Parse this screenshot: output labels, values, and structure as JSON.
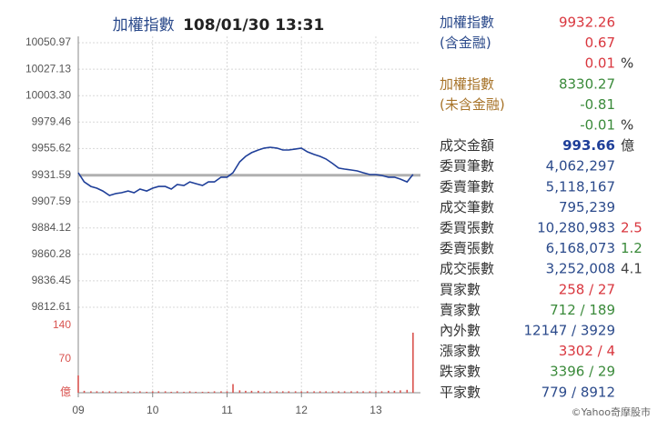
{
  "chart_data": [
    {
      "type": "line",
      "title": "加權指數",
      "subtitle": "108/01/30 13:31",
      "xlim": [
        9,
        13.6
      ],
      "xticks": [
        {
          "value": 9,
          "label": "09"
        },
        10,
        11,
        12,
        13
      ],
      "ylim": [
        9812.61,
        10050.97
      ],
      "yticks": [
        10050.97,
        10027.13,
        {
          "value": 10003.3,
          "label": "10003.30"
        },
        9979.46,
        9955.62,
        9931.59,
        9907.59,
        9884.12,
        9860.28,
        9836.45,
        9812.61
      ],
      "grid": true,
      "reference_value": 9931.59,
      "reference_color": "#b0b0b0",
      "x": [
        9,
        9.08,
        9.17,
        9.25,
        9.33,
        9.42,
        9.5,
        9.58,
        9.67,
        9.75,
        9.83,
        9.92,
        10,
        10.08,
        10.17,
        10.25,
        10.33,
        10.42,
        10.5,
        10.58,
        10.67,
        10.75,
        10.83,
        10.92,
        11,
        11.08,
        11.17,
        11.25,
        11.33,
        11.42,
        11.5,
        11.58,
        11.67,
        11.75,
        11.83,
        11.92,
        12,
        12.08,
        12.17,
        12.25,
        12.33,
        12.42,
        12.5,
        12.58,
        12.67,
        12.75,
        12.83,
        12.92,
        13,
        13.08,
        13.17,
        13.25,
        13.33,
        13.42,
        13.5
      ],
      "series": [
        {
          "color": "#1f3f99",
          "values": [
            9933.8,
            9925.6,
            9921.5,
            9919.9,
            9917.4,
            9913.4,
            9915.0,
            9915.8,
            9917.4,
            9915.8,
            9919.1,
            9917.4,
            9919.9,
            9921.5,
            9921.5,
            9919.1,
            9923.2,
            9922.4,
            9925.6,
            9924.0,
            9922.4,
            9925.6,
            9925.6,
            9929.8,
            9929.8,
            9933.8,
            9943.7,
            9948.6,
            9951.9,
            9954.3,
            9956.0,
            9956.8,
            9956.0,
            9954.3,
            9954.3,
            9955.2,
            9956.0,
            9952.7,
            9950.3,
            9948.6,
            9946.2,
            9942.1,
            9938.0,
            9937.1,
            9936.3,
            9935.5,
            9933.8,
            9932.2,
            9932.2,
            9931.4,
            9929.8,
            9929.8,
            9928.1,
            9925.6,
            9932.26
          ]
        }
      ]
    },
    {
      "type": "bar",
      "xlim": [
        9,
        13.6
      ],
      "ylim": [
        0,
        140
      ],
      "yticks": [
        {
          "value": 0,
          "label": "億"
        },
        70,
        140
      ],
      "color": "#d9534f",
      "x": [
        9,
        9.08,
        9.17,
        9.25,
        9.33,
        9.42,
        9.5,
        9.58,
        9.67,
        9.75,
        9.83,
        9.92,
        10,
        10.08,
        10.17,
        10.25,
        10.33,
        10.42,
        10.5,
        10.58,
        10.67,
        10.75,
        10.83,
        10.92,
        11,
        11.08,
        11.17,
        11.25,
        11.33,
        11.42,
        11.5,
        11.58,
        11.67,
        11.75,
        11.83,
        11.92,
        12,
        12.08,
        12.17,
        12.25,
        12.33,
        12.42,
        12.5,
        12.58,
        12.67,
        12.75,
        12.83,
        12.92,
        13,
        13.08,
        13.17,
        13.25,
        13.33,
        13.42,
        13.5
      ],
      "values": [
        36,
        4,
        3,
        3,
        3,
        3,
        3,
        2,
        3,
        2,
        3,
        2,
        3,
        3,
        3,
        2,
        3,
        2,
        3,
        2,
        2,
        2,
        3,
        3,
        3,
        18,
        5,
        4,
        4,
        4,
        3,
        3,
        3,
        3,
        3,
        3,
        3,
        3,
        3,
        3,
        3,
        3,
        3,
        3,
        3,
        3,
        3,
        3,
        3,
        3,
        4,
        4,
        5,
        6,
        125
      ]
    }
  ],
  "quote_panel": {
    "rows": [
      {
        "label": "加權指數",
        "label_color": "#2b4a8b",
        "value": "9932.26",
        "value_color": "#d9363e"
      },
      {
        "label": "(含金融)",
        "label_color": "#2b4a8b",
        "value": "0.67",
        "value_color": "#d9363e"
      },
      {
        "value": "0.01",
        "value_color": "#d9363e",
        "unit": "%"
      },
      {
        "label": "加權指數",
        "label_color": "#a8742a",
        "value": "8330.27",
        "value_color": "#3a8a3a"
      },
      {
        "label": "(未含金融)",
        "label_color": "#a8742a",
        "value": "-0.81",
        "value_color": "#3a8a3a"
      },
      {
        "value": "-0.01",
        "value_color": "#3a8a3a",
        "unit": "%"
      },
      {
        "label": "成交金額",
        "value": "993.66",
        "value_color": "#1f3f99",
        "unit": "億",
        "bold": true
      },
      {
        "label": "委買筆數",
        "value": "4,062,297",
        "value_color": "#2b4a8b"
      },
      {
        "label": "委賣筆數",
        "value": "5,118,167",
        "value_color": "#2b4a8b"
      },
      {
        "label": "成交筆數",
        "value": "795,239",
        "value_color": "#2b4a8b"
      },
      {
        "label": "委買張數",
        "value": "10,280,983",
        "value_color": "#2b4a8b",
        "note": "2.5",
        "note_color": "#d9363e"
      },
      {
        "label": "委賣張數",
        "value": "6,168,073",
        "value_color": "#2b4a8b",
        "note": "1.2",
        "note_color": "#3a8a3a"
      },
      {
        "label": "成交張數",
        "value": "3,252,008",
        "value_color": "#2b4a8b",
        "note": "4.1",
        "note_color": "#444444"
      },
      {
        "label": "買家數",
        "value": "258 / 27",
        "value_color": "#d9363e"
      },
      {
        "label": "賣家數",
        "value": "712 / 189",
        "value_color": "#3a8a3a"
      },
      {
        "label": "內外數",
        "value": "12147 / 3929",
        "value_color": "#2b4a8b"
      },
      {
        "label": "漲家數",
        "value": "3302 / 4",
        "value_color": "#d9363e"
      },
      {
        "label": "跌家數",
        "value": "3396 / 29",
        "value_color": "#3a8a3a"
      },
      {
        "label": "平家數",
        "value": "779 / 8912",
        "value_color": "#2b4a8b"
      }
    ]
  },
  "footer": "©Yahoo奇摩股市"
}
